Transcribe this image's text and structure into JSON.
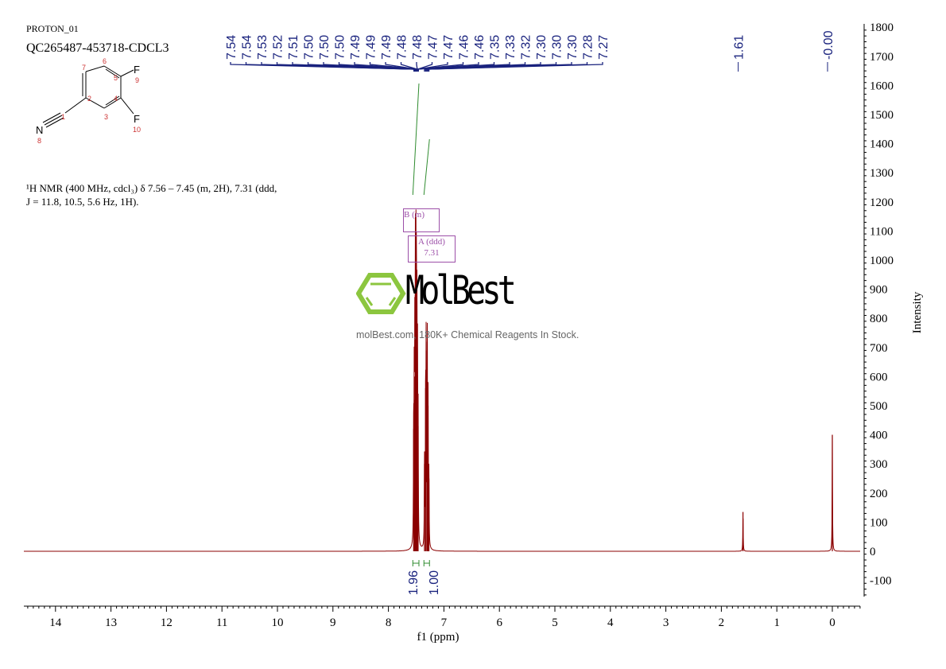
{
  "header": {
    "experiment": "PROTON_01",
    "sample": "QC265487-453718-CDCL3",
    "description_line1": "¹H NMR (400 MHz, cdcl₃) δ 7.56 – 7.45 (m, 2H), 7.31 (ddd,",
    "description_line2": "J = 11.8, 10.5, 5.6 Hz, 1H)."
  },
  "structure": {
    "atoms": [
      {
        "symbol": "N",
        "number": "8"
      },
      {
        "symbol": "F",
        "number": "9"
      },
      {
        "symbol": "F",
        "number": "10"
      }
    ],
    "carbon_numbers": [
      "1",
      "2",
      "3",
      "4",
      "5",
      "6",
      "7"
    ]
  },
  "watermark": {
    "brand": "MolBest",
    "tagline": "molBest.com, 180K+ Chemical Reagents In Stock."
  },
  "multiplet_boxes": [
    {
      "label": "B",
      "type": "(m)"
    },
    {
      "label": "A",
      "type": "(ddd)",
      "shift": "7.31"
    }
  ],
  "chart_data": {
    "type": "line",
    "xlabel": "f1 (ppm)",
    "ylabel": "Intensity",
    "xlim": [
      14.6,
      -0.5
    ],
    "ylim": [
      -150,
      1800
    ],
    "x_ticks": [
      "14",
      "13",
      "12",
      "11",
      "10",
      "9",
      "8",
      "7",
      "6",
      "5",
      "4",
      "3",
      "2",
      "1",
      "0"
    ],
    "y_ticks": [
      "1800",
      "1700",
      "1600",
      "1500",
      "1400",
      "1300",
      "1200",
      "1100",
      "1000",
      "900",
      "800",
      "700",
      "600",
      "500",
      "400",
      "300",
      "200",
      "100",
      "0",
      "-100"
    ],
    "peak_labels": [
      "7.54",
      "7.54",
      "7.53",
      "7.52",
      "7.51",
      "7.50",
      "7.50",
      "7.50",
      "7.49",
      "7.49",
      "7.49",
      "7.48",
      "7.48",
      "7.47",
      "7.47",
      "7.46",
      "7.46",
      "7.35",
      "7.33",
      "7.32",
      "7.30",
      "7.30",
      "7.30",
      "7.28",
      "7.27",
      "1.61",
      "-0.00"
    ],
    "peaks": [
      {
        "ppm": 7.545,
        "intensity": 420
      },
      {
        "ppm": 7.535,
        "intensity": 520
      },
      {
        "ppm": 7.525,
        "intensity": 600
      },
      {
        "ppm": 7.515,
        "intensity": 880
      },
      {
        "ppm": 7.505,
        "intensity": 950
      },
      {
        "ppm": 7.495,
        "intensity": 860
      },
      {
        "ppm": 7.485,
        "intensity": 700
      },
      {
        "ppm": 7.475,
        "intensity": 560
      },
      {
        "ppm": 7.465,
        "intensity": 430
      },
      {
        "ppm": 7.35,
        "intensity": 300
      },
      {
        "ppm": 7.33,
        "intensity": 560
      },
      {
        "ppm": 7.32,
        "intensity": 690
      },
      {
        "ppm": 7.3,
        "intensity": 720
      },
      {
        "ppm": 7.285,
        "intensity": 500
      },
      {
        "ppm": 7.27,
        "intensity": 250
      },
      {
        "ppm": 1.61,
        "intensity": 135
      },
      {
        "ppm": 0.0,
        "intensity": 400
      }
    ],
    "integrals": [
      {
        "range": [
          7.56,
          7.45
        ],
        "value": "1.96"
      },
      {
        "range": [
          7.36,
          7.26
        ],
        "value": "1.00"
      }
    ],
    "colors": {
      "spectrum": "#8b0000",
      "peak_labels": "#1a237e",
      "integral": "#2e8b2e",
      "multiplet_box": "#9c4fa8",
      "logo": "#8cc63f"
    }
  }
}
